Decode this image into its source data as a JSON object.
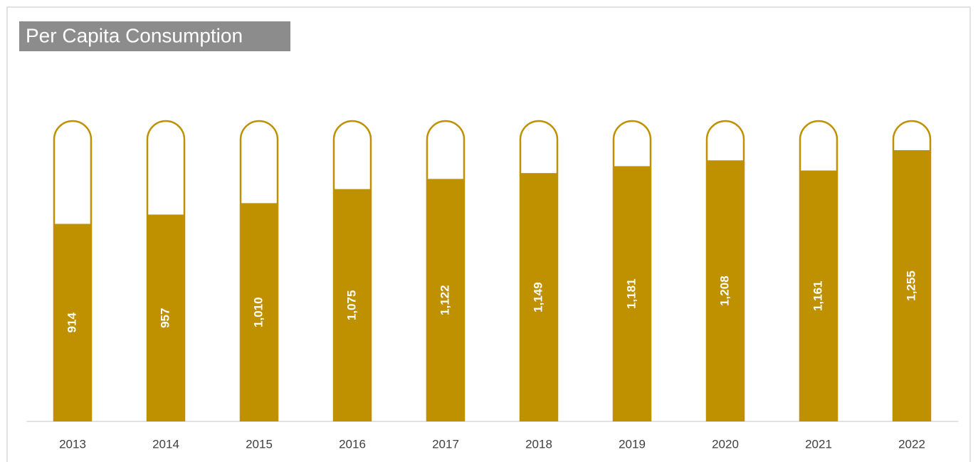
{
  "chart_data": {
    "type": "bar",
    "title": "Per Capita Consumption",
    "categories": [
      "2013",
      "2014",
      "2015",
      "2016",
      "2017",
      "2018",
      "2019",
      "2020",
      "2021",
      "2022"
    ],
    "values": [
      914,
      957,
      1010,
      1075,
      1122,
      1149,
      1181,
      1208,
      1161,
      1255
    ],
    "value_labels": [
      "914",
      "957",
      "1,010",
      "1,075",
      "1,122",
      "1,149",
      "1,181",
      "1,208",
      "1,161",
      "1,255"
    ],
    "color": "#bf9000",
    "ylim": [
      0,
      1390
    ]
  }
}
